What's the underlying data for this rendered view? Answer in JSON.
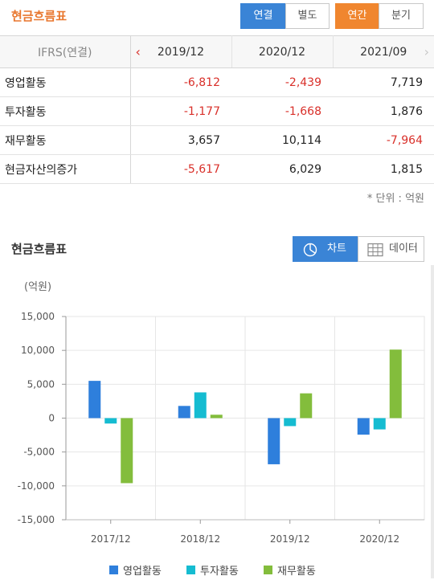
{
  "header": {
    "title": "현금흐름표",
    "btn_consolidated": "연결",
    "btn_separate": "별도",
    "btn_annual": "연간",
    "btn_quarter": "분기"
  },
  "table": {
    "corner": "IFRS(연결)",
    "columns": [
      "2019/12",
      "2020/12",
      "2021/09"
    ],
    "rows": [
      {
        "label": "영업활동",
        "values": [
          "-6,812",
          "-2,439",
          "7,719"
        ],
        "negative": [
          true,
          true,
          false
        ]
      },
      {
        "label": "투자활동",
        "values": [
          "-1,177",
          "-1,668",
          "1,876"
        ],
        "negative": [
          true,
          true,
          false
        ]
      },
      {
        "label": "재무활동",
        "values": [
          "3,657",
          "10,114",
          "-7,964"
        ],
        "negative": [
          false,
          false,
          true
        ]
      },
      {
        "label": "현금자산의증가",
        "values": [
          "-5,617",
          "6,029",
          "1,815"
        ],
        "negative": [
          true,
          false,
          false
        ]
      }
    ]
  },
  "unit_note": "* 단위 : 억원",
  "chart_section": {
    "title": "현금흐름표",
    "btn_chart": "차트",
    "btn_data": "데이터",
    "y_unit": "(억원)"
  },
  "colors": {
    "series": [
      "#2e7fdc",
      "#15bcd1",
      "#83bd3c"
    ],
    "negative_text": "#d9302a",
    "accent_orange": "#f0862f",
    "accent_blue": "#3a84d6"
  },
  "chart_data": {
    "type": "bar",
    "categories": [
      "2017/12",
      "2018/12",
      "2019/12",
      "2020/12"
    ],
    "series": [
      {
        "name": "영업활동",
        "values": [
          5500,
          1800,
          -6812,
          -2439
        ]
      },
      {
        "name": "투자활동",
        "values": [
          -800,
          3800,
          -1177,
          -1668
        ]
      },
      {
        "name": "재무활동",
        "values": [
          -9600,
          500,
          3657,
          10114
        ]
      }
    ],
    "ylim": [
      -15000,
      15000
    ],
    "yticks": [
      -15000,
      -10000,
      -5000,
      0,
      5000,
      10000,
      15000
    ],
    "ytick_labels": [
      "-15,000",
      "-10,000",
      "-5,000",
      "0",
      "5,000",
      "10,000",
      "15,000"
    ],
    "ylabel": "(억원)",
    "grid": true,
    "legend": "bottom"
  }
}
